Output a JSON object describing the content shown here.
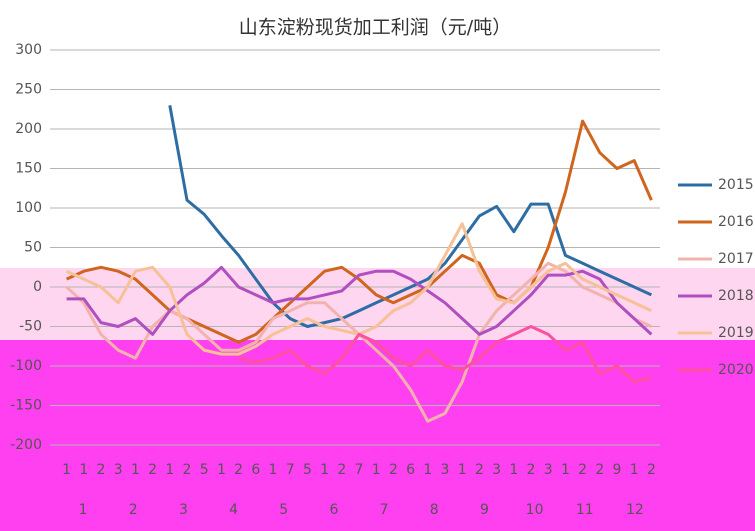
{
  "chart_data": {
    "type": "line",
    "title": "山东淀粉现货加工利润（元/吨）",
    "categories": [
      "1",
      "1",
      "2",
      "3",
      "1",
      "2",
      "1",
      "2",
      "5",
      "1",
      "2",
      "6",
      "1",
      "7",
      "5",
      "1",
      "2",
      "7",
      "1",
      "2",
      "6",
      "1",
      "3",
      "1",
      "2",
      "3",
      "1",
      "2",
      "3",
      "1",
      "2",
      "2",
      "9",
      "1",
      "2"
    ],
    "months": [
      "1",
      "2",
      "3",
      "4",
      "5",
      "6",
      "7",
      "8",
      "9",
      "10",
      "11",
      "12"
    ],
    "ylim": [
      -200,
      300
    ],
    "yticks": [
      -200,
      -150,
      -100,
      -50,
      0,
      50,
      100,
      150,
      200,
      250,
      300
    ],
    "grid": true,
    "legend": "right",
    "series": [
      {
        "name": "2015",
        "color": "#2e6da4",
        "values": [
          null,
          null,
          null,
          null,
          null,
          null,
          230,
          110,
          92,
          65,
          40,
          10,
          -20,
          -40,
          -50,
          -45,
          -40,
          -30,
          -20,
          -10,
          0,
          10,
          30,
          60,
          90,
          102,
          70,
          105,
          105,
          40,
          30,
          20,
          10,
          0,
          -10
        ]
      },
      {
        "name": "2016",
        "color": "#d0651e",
        "values": [
          10,
          20,
          25,
          20,
          10,
          -10,
          -30,
          -40,
          -50,
          -60,
          -70,
          -60,
          -40,
          -20,
          0,
          20,
          25,
          10,
          -10,
          -20,
          -10,
          0,
          20,
          40,
          30,
          -10,
          -20,
          0,
          50,
          120,
          210,
          170,
          150,
          160,
          110
        ]
      },
      {
        "name": "2017",
        "color": "#f2b3ad",
        "values": [
          0,
          -20,
          -60,
          -80,
          -90,
          -50,
          -30,
          -40,
          -60,
          -80,
          -80,
          -70,
          -40,
          -30,
          -20,
          -20,
          -40,
          -60,
          -80,
          -100,
          -130,
          -170,
          -160,
          -120,
          -60,
          -30,
          -10,
          10,
          30,
          20,
          0,
          -10,
          -20,
          -40,
          -50
        ]
      },
      {
        "name": "2018",
        "color": "#b04fc0",
        "values": [
          -15,
          -15,
          -45,
          -50,
          -40,
          -60,
          -30,
          -10,
          5,
          25,
          0,
          -10,
          -20,
          -15,
          -15,
          -10,
          -5,
          15,
          20,
          20,
          10,
          -5,
          -20,
          -40,
          -60,
          -50,
          -30,
          -10,
          15,
          15,
          20,
          10,
          -20,
          -40,
          -60
        ]
      },
      {
        "name": "2019",
        "color": "#f6c197",
        "values": [
          20,
          10,
          0,
          -20,
          20,
          25,
          0,
          -60,
          -80,
          -85,
          -85,
          -75,
          -60,
          -50,
          -40,
          -50,
          -55,
          -60,
          -50,
          -30,
          -20,
          0,
          40,
          80,
          20,
          -15,
          -20,
          0,
          20,
          30,
          10,
          0,
          -10,
          -20,
          -30
        ]
      },
      {
        "name": "2020",
        "color": "#ff4fa0",
        "values": [
          null,
          null,
          null,
          null,
          null,
          null,
          null,
          null,
          null,
          null,
          -90,
          -95,
          -90,
          -80,
          -100,
          -110,
          -90,
          -60,
          -70,
          -90,
          -100,
          -80,
          -100,
          -105,
          -90,
          -70,
          -60,
          -50,
          -60,
          -80,
          -70,
          -110,
          -100,
          -120,
          -115
        ]
      }
    ]
  }
}
